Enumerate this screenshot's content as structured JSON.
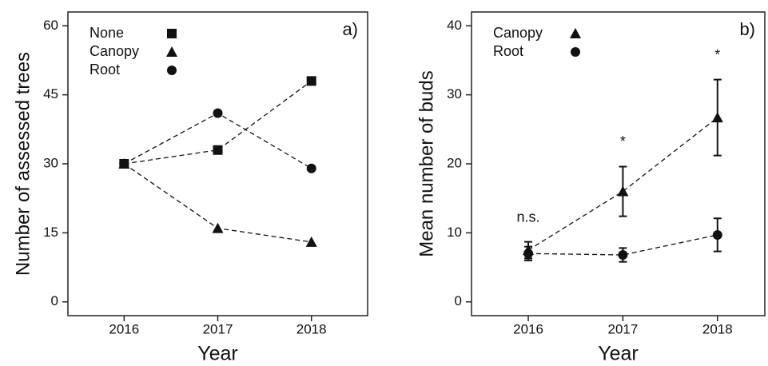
{
  "chart_data": [
    {
      "type": "line",
      "label": "a)",
      "xlabel": "Year",
      "ylabel": "Number of assessed trees",
      "x": [
        2016,
        2017,
        2018
      ],
      "xlim": [
        2015.4,
        2018.6
      ],
      "xticks": [
        2016,
        2017,
        2018
      ],
      "ylim": [
        -3,
        63
      ],
      "yticks": [
        0,
        15,
        30,
        45,
        60
      ],
      "legend": "upper left",
      "line_style": "dashed",
      "series": [
        {
          "name": "None",
          "marker": "square",
          "color": "#111111",
          "values": [
            30,
            33,
            48
          ]
        },
        {
          "name": "Canopy",
          "marker": "triangle",
          "color": "#111111",
          "values": [
            30,
            16,
            13
          ]
        },
        {
          "name": "Root",
          "marker": "circle",
          "color": "#111111",
          "values": [
            30,
            41,
            29
          ]
        }
      ]
    },
    {
      "type": "line",
      "label": "b)",
      "xlabel": "Year",
      "ylabel": "Mean number of buds",
      "x": [
        2016,
        2017,
        2018
      ],
      "xlim": [
        2015.4,
        2018.5
      ],
      "xticks": [
        2016,
        2017,
        2018
      ],
      "ylim": [
        -2,
        42
      ],
      "yticks": [
        0,
        10,
        20,
        30,
        40
      ],
      "legend": "upper left",
      "line_style": "dashed",
      "series": [
        {
          "name": "Canopy",
          "marker": "triangle",
          "color": "#111111",
          "values": [
            7.5,
            16,
            26.7
          ],
          "errors": [
            1.2,
            3.6,
            5.5
          ]
        },
        {
          "name": "Root",
          "marker": "circle",
          "color": "#111111",
          "values": [
            7.0,
            6.8,
            9.7
          ],
          "errors": [
            1.0,
            1.0,
            2.4
          ]
        }
      ],
      "annotations": [
        {
          "x": 2016,
          "text": "n.s."
        },
        {
          "x": 2017,
          "text": "*"
        },
        {
          "x": 2018,
          "text": "*"
        }
      ]
    }
  ]
}
